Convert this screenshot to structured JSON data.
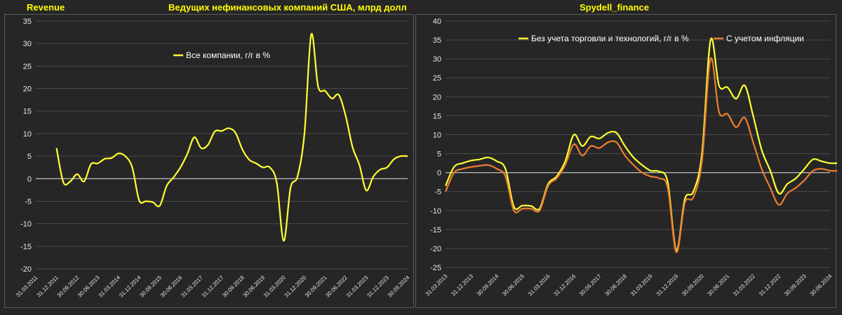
{
  "header": {
    "left_label": "Revenue",
    "title": "Ведущих нефинансовых компаний США, млрд долл",
    "source": "Spydell_finance"
  },
  "colors": {
    "yellow": "#ffff33",
    "orange": "#ed7d31",
    "grid": "#4a4a4a",
    "zero": "#bfbfbf"
  },
  "chart_data": [
    {
      "type": "line",
      "title": "",
      "ylim": [
        -20,
        35
      ],
      "yticks": [
        -20,
        -15,
        -10,
        -5,
        0,
        5,
        10,
        15,
        20,
        25,
        30,
        35
      ],
      "xticks": [
        "31.03.2011",
        "31.12.2011",
        "30.09.2012",
        "30.06.2013",
        "31.03.2014",
        "31.12.2014",
        "30.09.2015",
        "30.06.2016",
        "31.03.2017",
        "31.12.2017",
        "30.09.2018",
        "30.06.2019",
        "31.03.2020",
        "31.12.2020",
        "30.09.2021",
        "30.06.2022",
        "31.03.2023",
        "31.12.2023",
        "30.09.2024"
      ],
      "legend": "inside-top",
      "series": [
        {
          "name": "Все компании, г/г в %",
          "color": "#ffff33",
          "x": [
            "31.12.2011",
            "31.03.2012",
            "30.06.2012",
            "30.09.2012",
            "31.12.2012",
            "31.03.2013",
            "30.06.2013",
            "30.09.2013",
            "31.12.2013",
            "31.03.2014",
            "30.06.2014",
            "30.09.2014",
            "31.12.2014",
            "31.03.2015",
            "30.06.2015",
            "30.09.2015",
            "31.12.2015",
            "31.03.2016",
            "30.06.2016",
            "30.09.2016",
            "31.12.2016",
            "31.03.2017",
            "30.06.2017",
            "30.09.2017",
            "31.12.2017",
            "31.03.2018",
            "30.06.2018",
            "30.09.2018",
            "31.12.2018",
            "31.03.2019",
            "30.06.2019",
            "30.09.2019",
            "31.12.2019",
            "31.03.2020",
            "30.06.2020",
            "30.09.2020",
            "31.12.2020",
            "31.03.2021",
            "30.06.2021",
            "30.09.2021",
            "31.12.2021",
            "31.03.2022",
            "30.06.2022",
            "30.09.2022",
            "31.12.2022",
            "31.03.2023",
            "30.06.2023",
            "30.09.2023",
            "31.12.2023",
            "31.03.2024",
            "30.06.2024",
            "30.09.2024"
          ],
          "values": [
            6.8,
            -0.8,
            -0.6,
            1.0,
            -0.6,
            3.2,
            3.4,
            4.4,
            4.6,
            5.6,
            5.0,
            2.5,
            -4.8,
            -5.0,
            -5.2,
            -6.0,
            -1.6,
            0.3,
            2.5,
            5.5,
            9.2,
            6.8,
            7.5,
            10.5,
            10.6,
            11.2,
            10.2,
            6.5,
            4.2,
            3.4,
            2.5,
            2.5,
            -1.0,
            -13.8,
            -2.0,
            0.5,
            10.0,
            32.0,
            20.5,
            19.5,
            17.8,
            18.6,
            14.0,
            7.0,
            3.0,
            -2.6,
            0.4,
            2.0,
            2.5,
            4.3,
            5.0,
            5.0
          ]
        }
      ]
    },
    {
      "type": "line",
      "title": "",
      "ylim": [
        -25,
        40
      ],
      "yticks": [
        -25,
        -20,
        -15,
        -10,
        -5,
        0,
        5,
        10,
        15,
        20,
        25,
        30,
        35,
        40
      ],
      "xticks": [
        "31.03.2013",
        "31.12.2013",
        "30.09.2014",
        "30.06.2015",
        "31.03.2016",
        "31.12.2016",
        "30.09.2017",
        "30.06.2018",
        "31.03.2019",
        "31.12.2019",
        "30.09.2020",
        "30.06.2021",
        "31.03.2022",
        "31.12.2022",
        "30.09.2023",
        "30.06.2024"
      ],
      "legend": "top-right",
      "series": [
        {
          "name": "Без учета торговли и технологий, г/г в %",
          "color": "#ffff33",
          "x": [
            "31.03.2013",
            "30.06.2013",
            "30.09.2013",
            "31.12.2013",
            "31.03.2014",
            "30.06.2014",
            "30.09.2014",
            "31.12.2014",
            "31.03.2015",
            "30.06.2015",
            "30.09.2015",
            "31.12.2015",
            "31.03.2016",
            "30.06.2016",
            "30.09.2016",
            "31.12.2016",
            "31.03.2017",
            "30.06.2017",
            "30.09.2017",
            "31.12.2017",
            "31.03.2018",
            "30.06.2018",
            "30.09.2018",
            "31.12.2018",
            "31.03.2019",
            "30.06.2019",
            "30.09.2019",
            "31.12.2019",
            "31.03.2020",
            "30.06.2020",
            "30.09.2020",
            "31.12.2020",
            "31.03.2021",
            "30.06.2021",
            "30.09.2021",
            "31.12.2021",
            "31.03.2022",
            "30.06.2022",
            "30.09.2022",
            "31.12.2022",
            "31.03.2023",
            "30.06.2023",
            "30.09.2023",
            "31.12.2023",
            "31.03.2024",
            "30.06.2024",
            "30.09.2024"
          ],
          "values": [
            -3.5,
            1.5,
            2.5,
            3.2,
            3.5,
            4.0,
            3.0,
            1.0,
            -9.0,
            -8.7,
            -8.8,
            -9.5,
            -3.0,
            -1.0,
            3.0,
            10.0,
            7.0,
            9.5,
            9.0,
            10.5,
            10.5,
            7.0,
            4.0,
            2.0,
            0.5,
            0.3,
            -2.5,
            -20.5,
            -7.0,
            -5.0,
            5.0,
            35.0,
            23.0,
            22.5,
            19.5,
            23.0,
            15.0,
            6.0,
            0.5,
            -5.5,
            -3.0,
            -1.5,
            1.0,
            3.5,
            3.0,
            2.5,
            2.5
          ]
        },
        {
          "name": "С учетом инфляции",
          "color": "#ed7d31",
          "x": [
            "31.03.2013",
            "30.06.2013",
            "30.09.2013",
            "31.12.2013",
            "31.03.2014",
            "30.06.2014",
            "30.09.2014",
            "31.12.2014",
            "31.03.2015",
            "30.06.2015",
            "30.09.2015",
            "31.12.2015",
            "31.03.2016",
            "30.06.2016",
            "30.09.2016",
            "31.12.2016",
            "31.03.2017",
            "30.06.2017",
            "30.09.2017",
            "31.12.2017",
            "31.03.2018",
            "30.06.2018",
            "30.09.2018",
            "31.12.2018",
            "31.03.2019",
            "30.06.2019",
            "30.09.2019",
            "31.12.2019",
            "31.03.2020",
            "30.06.2020",
            "30.09.2020",
            "31.12.2020",
            "31.03.2021",
            "30.06.2021",
            "30.09.2021",
            "31.12.2021",
            "31.03.2022",
            "30.06.2022",
            "30.09.2022",
            "31.12.2022",
            "31.03.2023",
            "30.06.2023",
            "30.09.2023",
            "31.12.2023",
            "31.03.2024",
            "30.06.2024",
            "30.09.2024"
          ],
          "values": [
            -5.0,
            0.0,
            1.0,
            1.5,
            1.8,
            2.0,
            1.0,
            -1.0,
            -10.0,
            -9.5,
            -9.5,
            -10.0,
            -3.5,
            -1.5,
            2.0,
            7.5,
            4.5,
            7.0,
            6.5,
            8.0,
            8.0,
            4.5,
            2.0,
            0.0,
            -1.0,
            -1.5,
            -4.0,
            -21.0,
            -8.0,
            -6.5,
            3.0,
            30.0,
            16.0,
            15.5,
            12.0,
            14.5,
            8.0,
            1.0,
            -4.0,
            -8.5,
            -5.5,
            -4.0,
            -2.0,
            0.5,
            1.0,
            0.5,
            0.5
          ]
        }
      ]
    }
  ]
}
